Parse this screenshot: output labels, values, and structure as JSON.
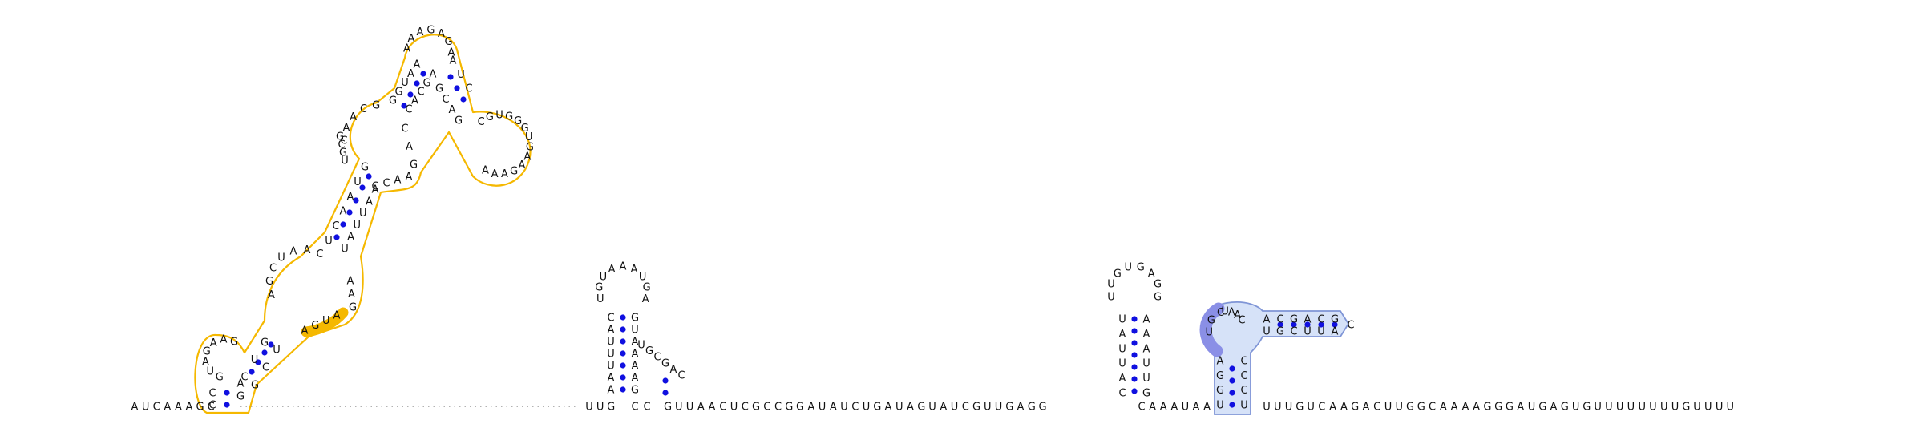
{
  "structure": {
    "backbone_5prime": "AUCAAAGC",
    "backbone_mid1": "UUG",
    "backbone_mid2": "GUUAACUCGCCGGAUAUCUGAUAGUAUCGUUGAGG",
    "backbone_mid3": "CAAAUAA",
    "backbone_3prime": "UUUGUCAAGACUUGGCAAAAGGGAUGAGUGUUUUUUUUGUUUU",
    "domain1": {
      "left_outer_strand": "GCUAGCUGCUAGCAGCUGC",
      "hairpin_small_loop": "GUAGAAGC",
      "interior_loop": "CUAA",
      "highlight_segment": "AGUA",
      "mid_loop": "CAACG",
      "top_loop": "AAAGAGA",
      "right_loop": "CGUGGGUGAAGAAA",
      "right_inner_strand": "CCAAGACGAGG"
    },
    "hairpin2": {
      "stem_left": "CAUUUAA",
      "loop": "UGUAAAUGA",
      "stem_right": "GUUAAGCC",
      "side_loop": "UGCGAC"
    },
    "hairpin3": {
      "stem_left": "UAUUAC",
      "loop": "UUGUGAGG",
      "stem_right": "GAUAUUG"
    },
    "domain2": {
      "stem_left": "AGGU",
      "loop_highlight": "UGC",
      "loop": "UAAC",
      "arm_top": "ACGACG",
      "arm_bottom": "UGCUUA",
      "arm_tip": "C",
      "stem_right": "CCCU"
    }
  },
  "colors": {
    "domain1_outline": "#f5b800",
    "domain1_highlight": "#f5b800",
    "domain2_fill": "#d6e2f8",
    "domain2_outline": "#7f95d6",
    "domain2_highlight": "#8a8fe6",
    "pair_dot": "#1010e0",
    "nucleotide": "#111111",
    "dotted_backbone": "#666666"
  }
}
